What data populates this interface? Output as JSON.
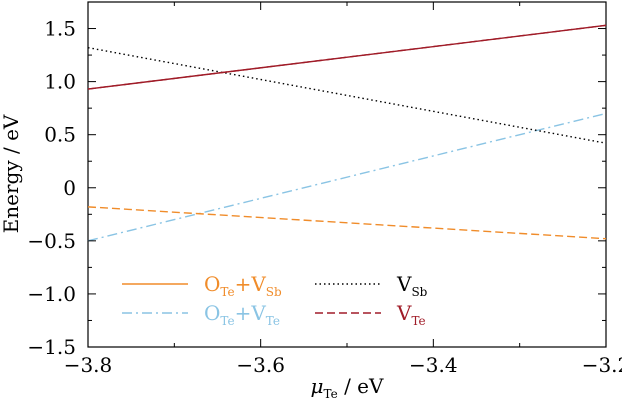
{
  "chart_data": {
    "type": "line",
    "xlabel": "μ_Te / eV",
    "xlabel_parts": {
      "main": "μ",
      "sub": "Te",
      "rest": " / eV"
    },
    "ylabel": "Energy / eV",
    "xlim": [
      -3.8,
      -3.2
    ],
    "ylim": [
      -1.5,
      1.75
    ],
    "x_ticks": [
      -3.8,
      -3.6,
      -3.4,
      -3.2
    ],
    "x_tick_labels": [
      "−3.8",
      "−3.6",
      "−3.4",
      "−3.2"
    ],
    "y_ticks": [
      -1.5,
      -1.0,
      -0.5,
      0,
      0.5,
      1.0,
      1.5
    ],
    "y_tick_labels": [
      "−1.5",
      "−1.0",
      "−0.5",
      "0",
      "0.5",
      "1.0",
      "1.5"
    ],
    "grid": false,
    "legend_position": "bottom-left",
    "series": [
      {
        "id": "ote_vsb",
        "name": "O_Te+V_Sb",
        "label_parts": [
          {
            "t": "O",
            "sub": false
          },
          {
            "t": "Te",
            "sub": true
          },
          {
            "t": "+V",
            "sub": false
          },
          {
            "t": "Sb",
            "sub": true
          }
        ],
        "color": "#f08c2a",
        "style": "solid",
        "x": [
          -3.8,
          -3.2
        ],
        "y": [
          null,
          null
        ]
      },
      {
        "id": "ote_vte",
        "name": "O_Te+V_Te",
        "label_parts": [
          {
            "t": "O",
            "sub": false
          },
          {
            "t": "Te",
            "sub": true
          },
          {
            "t": "+V",
            "sub": false
          },
          {
            "t": "Te",
            "sub": true
          }
        ],
        "color": "#8ac4e4",
        "style": "dashdot",
        "x": [
          -3.8,
          -3.2
        ],
        "y": [
          -0.5,
          0.7
        ]
      },
      {
        "id": "vsb",
        "name": "V_Sb",
        "label_parts": [
          {
            "t": "V",
            "sub": false
          },
          {
            "t": "Sb",
            "sub": true
          }
        ],
        "color": "#000000",
        "style": "dotted",
        "x": [
          -3.8,
          -3.2
        ],
        "y": [
          1.32,
          0.42
        ]
      },
      {
        "id": "vte",
        "name": "V_Te",
        "label_parts": [
          {
            "t": "V",
            "sub": false
          },
          {
            "t": "Te",
            "sub": true
          }
        ],
        "color": "#a01c28",
        "style": "dashed",
        "x": [
          -3.8,
          -3.2
        ],
        "y": [
          0.93,
          1.53
        ]
      },
      {
        "id": "orange_dashed",
        "name": "",
        "label_parts": [],
        "color": "#f08c2a",
        "style": "dashed",
        "x": [
          -3.8,
          -3.2
        ],
        "y": [
          -0.18,
          -0.48
        ]
      }
    ],
    "solid_overlay": {
      "id": "vte_solid",
      "color": "#a01c28",
      "x": [
        -3.8,
        -3.2
      ],
      "y": [
        0.93,
        1.53
      ]
    },
    "legend": [
      {
        "series": "ote_vsb",
        "column": 0,
        "row": 0
      },
      {
        "series": "ote_vte",
        "column": 0,
        "row": 1
      },
      {
        "series": "vsb",
        "column": 1,
        "row": 0
      },
      {
        "series": "vte",
        "column": 1,
        "row": 1
      }
    ]
  }
}
